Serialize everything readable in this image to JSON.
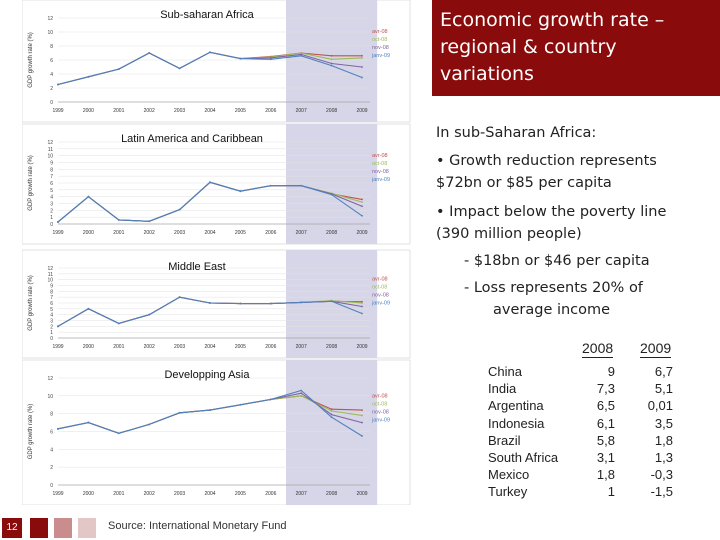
{
  "slide": {
    "title_lines": [
      "Economic growth rate –",
      "regional & country",
      "variations"
    ],
    "intro": "In sub-Saharan Africa:",
    "bullet1": [
      "• Growth reduction represents",
      "$72bn or $85 per capita"
    ],
    "bullet2": [
      "• Impact below the poverty line",
      "(390 million people)"
    ],
    "sub1": "-   $18bn or $46 per capita",
    "sub2": [
      "-   Loss represents 20% of",
      "average income"
    ],
    "page_number": "12",
    "source": "Source: International Monetary Fund",
    "accent": "#8a0b0b",
    "table": {
      "headers": [
        "2008",
        "2009"
      ],
      "rows": [
        {
          "country": "China",
          "v2008": "9",
          "v2009": "6,7"
        },
        {
          "country": "India",
          "v2008": "7,3",
          "v2009": "5,1"
        },
        {
          "country": "Argentina",
          "v2008": "6,5",
          "v2009": "0,01"
        },
        {
          "country": "Indonesia",
          "v2008": "6,1",
          "v2009": "3,5"
        },
        {
          "country": "Brazil",
          "v2008": "5,8",
          "v2009": "1,8"
        },
        {
          "country": "South Africa",
          "v2008": "3,1",
          "v2009": "1,3"
        },
        {
          "country": "Mexico",
          "v2008": "1,8",
          "v2009": "-0,3"
        },
        {
          "country": "Turkey",
          "v2008": "1",
          "v2009": "-1,5"
        }
      ]
    }
  },
  "chart_data": [
    {
      "type": "line",
      "title": "Sub-saharan Africa",
      "ylabel": "GDP growth rate (%)",
      "x": [
        "1999",
        "2000",
        "2001",
        "2002",
        "2003",
        "2004",
        "2005",
        "2006",
        "2007",
        "2008",
        "2009"
      ],
      "yticks": [
        "0",
        "2",
        "4",
        "6",
        "8",
        "10",
        "12"
      ],
      "ylim": [
        0,
        12
      ],
      "highlight_range": [
        "2007",
        "2009"
      ],
      "series": [
        {
          "name": "avr-08",
          "color": "#c0504d",
          "values": [
            2.5,
            3.6,
            4.7,
            7.0,
            4.8,
            7.1,
            6.2,
            6.5,
            7.0,
            6.6,
            6.6
          ]
        },
        {
          "name": "oct-08",
          "color": "#9bbb59",
          "values": [
            2.5,
            3.6,
            4.7,
            7.0,
            4.8,
            7.1,
            6.2,
            6.4,
            7.0,
            6.1,
            6.3
          ]
        },
        {
          "name": "nov-08",
          "color": "#8064a2",
          "values": [
            2.5,
            3.6,
            4.7,
            7.0,
            4.8,
            7.1,
            6.2,
            6.3,
            6.8,
            5.5,
            5.0
          ]
        },
        {
          "name": "janv-09",
          "color": "#4f81bd",
          "values": [
            2.5,
            3.6,
            4.7,
            7.0,
            4.8,
            7.1,
            6.2,
            6.1,
            6.6,
            5.2,
            3.5
          ]
        }
      ]
    },
    {
      "type": "line",
      "title": "Latin America and Caribbean",
      "ylabel": "GDP growth rate (%)",
      "x": [
        "1999",
        "2000",
        "2001",
        "2002",
        "2003",
        "2004",
        "2005",
        "2006",
        "2007",
        "2008",
        "2009"
      ],
      "yticks": [
        "0",
        "1",
        "2",
        "3",
        "4",
        "5",
        "6",
        "7",
        "8",
        "9",
        "10",
        "11",
        "12"
      ],
      "ylim": [
        0,
        12
      ],
      "highlight_range": [
        "2007",
        "2009"
      ],
      "series": [
        {
          "name": "avr-08",
          "color": "#c0504d",
          "values": [
            0.3,
            4.0,
            0.6,
            0.4,
            2.1,
            6.1,
            4.8,
            5.6,
            5.6,
            4.4,
            3.6
          ]
        },
        {
          "name": "oct-08",
          "color": "#9bbb59",
          "values": [
            0.3,
            4.0,
            0.6,
            0.4,
            2.1,
            6.1,
            4.8,
            5.6,
            5.6,
            4.5,
            3.2
          ]
        },
        {
          "name": "nov-08",
          "color": "#8064a2",
          "values": [
            0.3,
            4.0,
            0.6,
            0.4,
            2.1,
            6.1,
            4.8,
            5.6,
            5.6,
            4.4,
            2.6
          ]
        },
        {
          "name": "janv-09",
          "color": "#4f81bd",
          "values": [
            0.3,
            4.0,
            0.6,
            0.4,
            2.1,
            6.1,
            4.8,
            5.6,
            5.6,
            4.3,
            1.2
          ]
        }
      ]
    },
    {
      "type": "line",
      "title": "Middle East",
      "ylabel": "GDP growth rate (%)",
      "x": [
        "1999",
        "2000",
        "2001",
        "2002",
        "2003",
        "2004",
        "2005",
        "2006",
        "2007",
        "2008",
        "2009"
      ],
      "yticks": [
        "0",
        "1",
        "2",
        "3",
        "4",
        "5",
        "6",
        "7",
        "8",
        "9",
        "10",
        "11",
        "12"
      ],
      "ylim": [
        0,
        12
      ],
      "highlight_range": [
        "2007",
        "2009"
      ],
      "series": [
        {
          "name": "avr-08",
          "color": "#c0504d",
          "values": [
            2.0,
            5.0,
            2.5,
            4.0,
            7.0,
            6.0,
            5.9,
            5.9,
            6.1,
            6.3,
            6.2
          ]
        },
        {
          "name": "oct-08",
          "color": "#9bbb59",
          "values": [
            2.0,
            5.0,
            2.5,
            4.0,
            7.0,
            6.0,
            5.9,
            5.9,
            6.1,
            6.4,
            6.0
          ]
        },
        {
          "name": "nov-08",
          "color": "#8064a2",
          "values": [
            2.0,
            5.0,
            2.5,
            4.0,
            7.0,
            6.0,
            5.9,
            5.9,
            6.1,
            6.3,
            5.4
          ]
        },
        {
          "name": "janv-09",
          "color": "#4f81bd",
          "values": [
            2.0,
            5.0,
            2.5,
            4.0,
            7.0,
            6.0,
            5.9,
            5.9,
            6.1,
            6.3,
            4.2
          ]
        }
      ]
    },
    {
      "type": "line",
      "title": "Developping Asia",
      "ylabel": "GDP growth rate (%)",
      "x": [
        "1999",
        "2000",
        "2001",
        "2002",
        "2003",
        "2004",
        "2005",
        "2006",
        "2007",
        "2008",
        "2009"
      ],
      "yticks": [
        "0",
        "2",
        "4",
        "6",
        "8",
        "10",
        "12"
      ],
      "ylim": [
        0,
        12
      ],
      "highlight_range": [
        "2007",
        "2009"
      ],
      "series": [
        {
          "name": "avr-08",
          "color": "#c0504d",
          "values": [
            6.3,
            7.0,
            5.8,
            6.8,
            8.1,
            8.4,
            9.0,
            9.6,
            10.0,
            8.5,
            8.4
          ]
        },
        {
          "name": "oct-08",
          "color": "#9bbb59",
          "values": [
            6.3,
            7.0,
            5.8,
            6.8,
            8.1,
            8.4,
            9.0,
            9.6,
            10.0,
            8.3,
            7.8
          ]
        },
        {
          "name": "nov-08",
          "color": "#8064a2",
          "values": [
            6.3,
            7.0,
            5.8,
            6.8,
            8.1,
            8.4,
            9.0,
            9.6,
            10.3,
            7.9,
            7.0
          ]
        },
        {
          "name": "janv-09",
          "color": "#4f81bd",
          "values": [
            6.3,
            7.0,
            5.8,
            6.8,
            8.1,
            8.4,
            9.0,
            9.6,
            10.6,
            7.6,
            5.5
          ]
        }
      ]
    }
  ]
}
